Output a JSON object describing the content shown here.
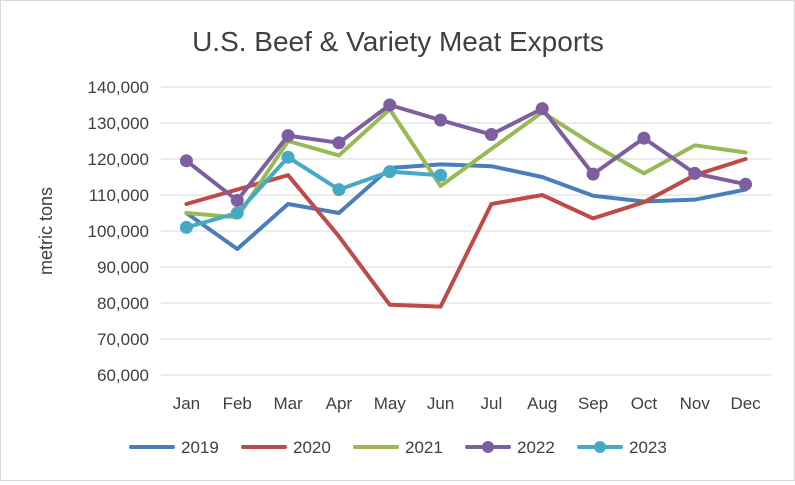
{
  "chart_data": {
    "type": "line",
    "title": "U.S. Beef & Variety Meat Exports",
    "xlabel": "",
    "ylabel": "metric tons",
    "categories": [
      "Jan",
      "Feb",
      "Mar",
      "Apr",
      "May",
      "Jun",
      "Jul",
      "Aug",
      "Sep",
      "Oct",
      "Nov",
      "Dec"
    ],
    "ylim": [
      60000,
      140000
    ],
    "yticks": [
      60000,
      70000,
      80000,
      90000,
      100000,
      110000,
      120000,
      130000,
      140000
    ],
    "ytick_labels": [
      "60,000",
      "70,000",
      "80,000",
      "90,000",
      "100,000",
      "110,000",
      "120,000",
      "130,000",
      "140,000"
    ],
    "grid": true,
    "legend_position": "bottom",
    "series": [
      {
        "name": "2019",
        "color": "#4a7ebb",
        "markers": false,
        "values": [
          105000,
          95000,
          107500,
          105000,
          117500,
          118500,
          118000,
          115000,
          109800,
          108200,
          108700,
          111500
        ]
      },
      {
        "name": "2020",
        "color": "#be4b48",
        "markers": false,
        "values": [
          107500,
          111500,
          115500,
          98500,
          79500,
          79000,
          107500,
          110000,
          103500,
          108000,
          115500,
          120000
        ]
      },
      {
        "name": "2021",
        "color": "#98b954",
        "markers": false,
        "values": [
          105000,
          103800,
          125000,
          121000,
          133800,
          112500,
          122800,
          133000,
          124000,
          116000,
          123800,
          121800
        ]
      },
      {
        "name": "2022",
        "color": "#7d5fa0",
        "markers": true,
        "values": [
          119500,
          108500,
          126500,
          124500,
          135000,
          130800,
          126800,
          134000,
          115800,
          125800,
          116000,
          113000
        ]
      },
      {
        "name": "2023",
        "color": "#46aac5",
        "markers": true,
        "values": [
          101000,
          105000,
          120500,
          111500,
          116500,
          115500,
          null,
          null,
          null,
          null,
          null,
          null
        ]
      }
    ]
  }
}
